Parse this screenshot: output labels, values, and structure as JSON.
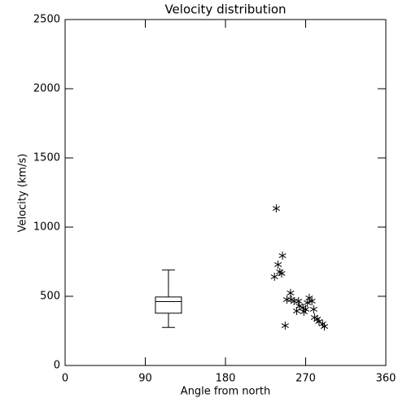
{
  "chart_data": {
    "type": "scatter",
    "title": "Velocity distribution",
    "x_label": "Angle from north",
    "y_label": "Velocity (km/s)",
    "xlim": [
      0,
      360
    ],
    "xticks": [
      0,
      90,
      180,
      270,
      360
    ],
    "ylim": [
      0,
      2500
    ],
    "yticks": [
      0,
      500,
      1000,
      1500,
      2000,
      2500
    ],
    "color": "#000000",
    "box": {
      "x": 116,
      "whislo": 275,
      "q1": 378,
      "med": 462,
      "q3": 495,
      "whishi": 690
    },
    "series": [
      {
        "x": [
          237,
          239,
          244,
          235,
          241,
          243,
          253,
          249,
          254,
          257,
          262,
          260,
          267,
          270,
          274,
          277,
          272,
          279,
          280,
          283,
          285,
          289,
          291,
          247,
          268,
          263
        ],
        "y": [
          1135,
          729,
          794,
          641,
          676,
          665,
          524,
          476,
          476,
          465,
          465,
          394,
          418,
          406,
          488,
          465,
          453,
          406,
          347,
          335,
          318,
          300,
          282,
          288,
          388,
          429
        ]
      }
    ]
  }
}
